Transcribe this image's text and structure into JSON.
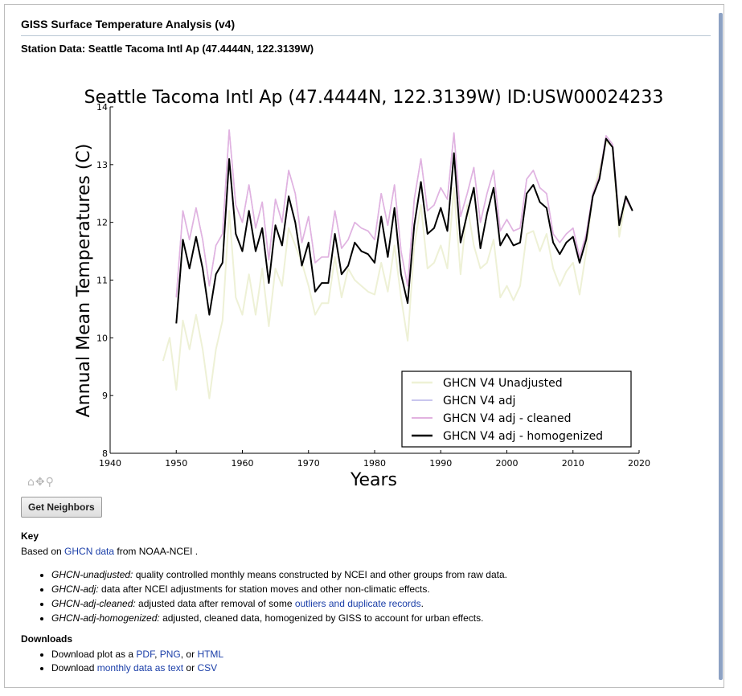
{
  "page": {
    "title": "GISS Surface Temperature Analysis (v4)",
    "station_heading": "Station Data: Seattle Tacoma Intl Ap (47.4444N, 122.3139W)"
  },
  "toolbar": {
    "icons": [
      "home-icon",
      "pan-icon",
      "zoom-icon"
    ],
    "home_glyph": "⌂",
    "pan_glyph": "✥",
    "zoom_glyph": "⚲"
  },
  "neighbors_button": {
    "label": "Get Neighbors"
  },
  "key": {
    "heading": "Key",
    "intro_before": "Based on ",
    "intro_link": "GHCN data",
    "intro_after": " from NOAA-NCEI .",
    "items": [
      {
        "term": "GHCN-unadjusted:",
        "desc": " quality controlled monthly means constructed by NCEI and other groups from raw data."
      },
      {
        "term": "GHCN-adj:",
        "desc": " data after NCEI adjustments for station moves and other non-climatic effects."
      },
      {
        "term": "GHCN-adj-cleaned:",
        "desc": " adjusted data after removal of some ",
        "link": "outliers and duplicate records",
        "after": "."
      },
      {
        "term": "GHCN-adj-homogenized:",
        "desc": " adjusted, cleaned data, homogenized by GISS to account for urban effects."
      }
    ]
  },
  "downloads": {
    "heading": "Downloads",
    "plot_prefix": "Download plot as a ",
    "plot_pdf": "PDF",
    "plot_sep1": ", ",
    "plot_png": "PNG",
    "plot_sep2": ", or ",
    "plot_html": "HTML",
    "data_prefix": "Download ",
    "data_text": "monthly data as text",
    "data_sep": " or ",
    "data_csv": "CSV"
  },
  "chart_data": {
    "type": "line",
    "title": "Seattle Tacoma Intl Ap (47.4444N, 122.3139W) ID:USW00024233",
    "xlabel": "Years",
    "ylabel": "Annual Mean Temperatures (C)",
    "xlim": [
      1940,
      2020
    ],
    "ylim": [
      8,
      14
    ],
    "xticks": [
      1940,
      1950,
      1960,
      1970,
      1980,
      1990,
      2000,
      2010,
      2020
    ],
    "yticks": [
      8,
      9,
      10,
      11,
      12,
      13,
      14
    ],
    "grid": false,
    "legend_position": "lower-right",
    "series": [
      {
        "name": "GHCN V4 Unadjusted",
        "color": "#eef1d6",
        "x": [
          1948,
          1949,
          1950,
          1951,
          1952,
          1953,
          1954,
          1955,
          1956,
          1957,
          1958,
          1959,
          1960,
          1961,
          1962,
          1963,
          1964,
          1965,
          1966,
          1967,
          1968,
          1969,
          1970,
          1971,
          1972,
          1973,
          1974,
          1975,
          1976,
          1977,
          1978,
          1979,
          1980,
          1981,
          1982,
          1983,
          1984,
          1985,
          1986,
          1987,
          1988,
          1989,
          1990,
          1991,
          1992,
          1993,
          1994,
          1995,
          1996,
          1997,
          1998,
          1999,
          2000,
          2001,
          2002,
          2003,
          2004,
          2005,
          2006,
          2007,
          2008,
          2009,
          2010,
          2011,
          2012,
          2013,
          2014,
          2015,
          2016,
          2017,
          2018,
          2019
        ],
        "values": [
          9.6,
          10.0,
          9.1,
          10.3,
          9.8,
          10.4,
          9.8,
          8.95,
          9.8,
          10.3,
          12.2,
          10.7,
          10.4,
          11.1,
          10.4,
          11.2,
          10.2,
          11.2,
          10.9,
          11.9,
          11.6,
          11.3,
          10.9,
          10.4,
          10.6,
          10.6,
          11.4,
          10.7,
          11.2,
          11.0,
          10.9,
          10.8,
          10.75,
          11.3,
          10.8,
          11.6,
          10.7,
          9.95,
          11.6,
          12.3,
          11.2,
          11.3,
          11.6,
          11.2,
          12.6,
          11.1,
          12.3,
          11.6,
          11.2,
          11.3,
          11.7,
          10.7,
          10.9,
          10.65,
          10.9,
          11.8,
          11.85,
          11.5,
          11.8,
          11.2,
          10.9,
          11.15,
          11.3,
          10.75,
          11.5,
          12.5,
          12.9,
          13.4,
          13.3,
          11.75,
          12.4,
          12.2
        ]
      },
      {
        "name": "GHCN V4 adj",
        "color": "#c9c6ee",
        "x": [
          1950,
          1951,
          1952,
          1953,
          1954,
          1955,
          1956,
          1957,
          1958,
          1959,
          1960,
          1961,
          1962,
          1963,
          1964,
          1965,
          1966,
          1967,
          1968,
          1969,
          1970,
          1971,
          1972,
          1973,
          1974,
          1975,
          1976,
          1977,
          1978,
          1979,
          1980,
          1981,
          1982,
          1983,
          1984,
          1985,
          1986,
          1987,
          1988,
          1989,
          1990,
          1991,
          1992,
          1993,
          1994,
          1995,
          1996,
          1997,
          1998,
          1999,
          2000,
          2001,
          2002,
          2003,
          2004,
          2005,
          2006,
          2007,
          2008,
          2009,
          2010,
          2011,
          2012,
          2013,
          2014,
          2015,
          2016,
          2017,
          2018,
          2019
        ],
        "values": [
          10.7,
          12.2,
          11.7,
          12.25,
          11.7,
          10.9,
          11.6,
          11.8,
          13.6,
          12.3,
          12.0,
          12.65,
          11.9,
          12.35,
          11.35,
          12.4,
          12.0,
          12.9,
          12.5,
          11.65,
          12.1,
          11.3,
          11.4,
          11.4,
          12.2,
          11.55,
          11.7,
          12.0,
          11.9,
          11.85,
          11.7,
          12.5,
          11.95,
          12.65,
          11.5,
          10.9,
          12.4,
          13.1,
          12.2,
          12.3,
          12.6,
          12.4,
          13.55,
          12.1,
          12.5,
          12.95,
          12.0,
          12.5,
          12.9,
          11.85,
          12.05,
          11.85,
          11.9,
          12.75,
          12.9,
          12.6,
          12.5,
          11.8,
          11.65,
          11.8,
          11.9,
          11.4,
          11.8,
          12.5,
          12.8,
          13.5,
          13.35,
          12.0,
          12.4,
          12.2
        ]
      },
      {
        "name": "GHCN V4 adj - cleaned",
        "color": "#e2b2e0",
        "x": [
          1950,
          1951,
          1952,
          1953,
          1954,
          1955,
          1956,
          1957,
          1958,
          1959,
          1960,
          1961,
          1962,
          1963,
          1964,
          1965,
          1966,
          1967,
          1968,
          1969,
          1970,
          1971,
          1972,
          1973,
          1974,
          1975,
          1976,
          1977,
          1978,
          1979,
          1980,
          1981,
          1982,
          1983,
          1984,
          1985,
          1986,
          1987,
          1988,
          1989,
          1990,
          1991,
          1992,
          1993,
          1994,
          1995,
          1996,
          1997,
          1998,
          1999,
          2000,
          2001,
          2002,
          2003,
          2004,
          2005,
          2006,
          2007,
          2008,
          2009,
          2010,
          2011,
          2012,
          2013,
          2014,
          2015,
          2016,
          2017,
          2018,
          2019
        ],
        "values": [
          10.7,
          12.2,
          11.7,
          12.25,
          11.7,
          10.9,
          11.6,
          11.8,
          13.6,
          12.3,
          12.0,
          12.65,
          11.9,
          12.35,
          11.35,
          12.4,
          12.0,
          12.9,
          12.5,
          11.65,
          12.1,
          11.3,
          11.4,
          11.4,
          12.2,
          11.55,
          11.7,
          12.0,
          11.9,
          11.85,
          11.7,
          12.5,
          11.95,
          12.65,
          11.5,
          10.9,
          12.4,
          13.1,
          12.2,
          12.3,
          12.6,
          12.4,
          13.55,
          12.1,
          12.5,
          12.95,
          12.0,
          12.5,
          12.9,
          11.85,
          12.05,
          11.85,
          11.9,
          12.75,
          12.9,
          12.6,
          12.5,
          11.8,
          11.65,
          11.8,
          11.9,
          11.4,
          11.8,
          12.5,
          12.8,
          13.5,
          13.35,
          12.0,
          12.4,
          12.2
        ]
      },
      {
        "name": "GHCN V4 adj - homogenized",
        "color": "#000000",
        "x": [
          1950,
          1951,
          1952,
          1953,
          1954,
          1955,
          1956,
          1957,
          1958,
          1959,
          1960,
          1961,
          1962,
          1963,
          1964,
          1965,
          1966,
          1967,
          1968,
          1969,
          1970,
          1971,
          1972,
          1973,
          1974,
          1975,
          1976,
          1977,
          1978,
          1979,
          1980,
          1981,
          1982,
          1983,
          1984,
          1985,
          1986,
          1987,
          1988,
          1989,
          1990,
          1991,
          1992,
          1993,
          1994,
          1995,
          1996,
          1997,
          1998,
          1999,
          2000,
          2001,
          2002,
          2003,
          2004,
          2005,
          2006,
          2007,
          2008,
          2009,
          2010,
          2011,
          2012,
          2013,
          2014,
          2015,
          2016,
          2017,
          2018,
          2019
        ],
        "values": [
          10.25,
          11.7,
          11.2,
          11.75,
          11.2,
          10.4,
          11.1,
          11.3,
          13.1,
          11.8,
          11.5,
          12.2,
          11.5,
          11.9,
          10.95,
          11.95,
          11.6,
          12.45,
          12.0,
          11.25,
          11.65,
          10.8,
          10.95,
          10.95,
          11.8,
          11.1,
          11.25,
          11.65,
          11.5,
          11.45,
          11.3,
          12.1,
          11.4,
          12.25,
          11.1,
          10.6,
          11.95,
          12.7,
          11.8,
          11.9,
          12.25,
          11.85,
          13.2,
          11.65,
          12.15,
          12.6,
          11.55,
          12.15,
          12.6,
          11.6,
          11.8,
          11.6,
          11.65,
          12.5,
          12.65,
          12.35,
          12.25,
          11.65,
          11.45,
          11.65,
          11.75,
          11.3,
          11.7,
          12.45,
          12.75,
          13.45,
          13.3,
          11.95,
          12.45,
          12.2
        ]
      }
    ]
  }
}
